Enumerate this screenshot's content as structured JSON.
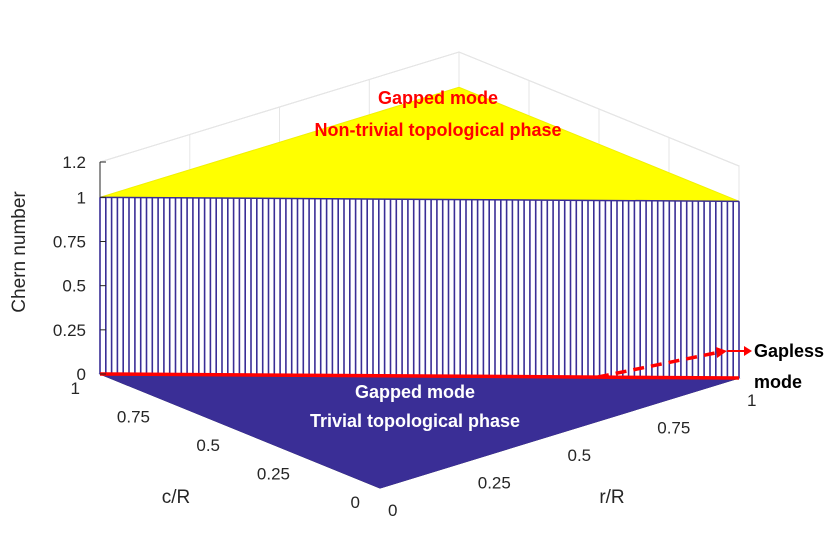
{
  "chart_data": {
    "type": "surface",
    "title": "",
    "zlabel": "Chern number",
    "xlabel": "r/R",
    "ylabel": "c/R",
    "zlim": [
      0,
      1.2
    ],
    "xlim": [
      0,
      1
    ],
    "ylim": [
      0,
      1
    ],
    "z_ticks": [
      "0",
      "0.25",
      "0.5",
      "0.75",
      "1",
      "1.2"
    ],
    "x_ticks": [
      "0",
      "0.25",
      "0.5",
      "0.75",
      "1"
    ],
    "y_ticks": [
      "0",
      "0.25",
      "0.5",
      "0.75",
      "1"
    ],
    "grid": true,
    "regions": [
      {
        "name": "upper plateau",
        "chern_number": 1,
        "condition": "c/R < 1 - r/R",
        "color": "#ffff00"
      },
      {
        "name": "lower plateau",
        "chern_number": 0,
        "condition": "c/R > 1 - r/R",
        "color": "#3a2e96"
      }
    ],
    "boundary_line": {
      "points": [
        [
          0,
          1
        ],
        [
          1,
          0
        ]
      ],
      "color": "#ff0000"
    },
    "wall_color": "#3a2e96",
    "annotations": {
      "upper_line1": "Gapped mode",
      "upper_line2": "Non-trivial topological phase",
      "lower_line1": "Gapped mode",
      "lower_line2": "Trivial topological phase",
      "gapless_line1": "Gapless",
      "gapless_line2": "mode"
    }
  }
}
